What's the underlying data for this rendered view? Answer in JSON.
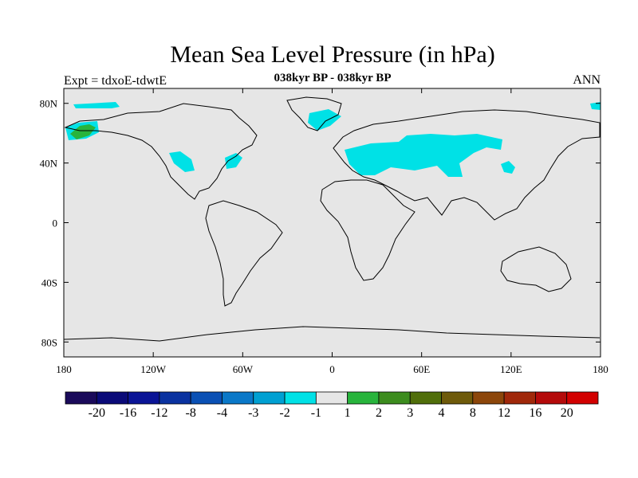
{
  "title": "Mean Sea Level Pressure (in hPa)",
  "subtitle": "038kyr BP - 038kyr BP",
  "left_label": "Expt = tdxoE-tdwtE",
  "right_label": "ANN",
  "colors": {
    "background_field": "#e6e6e6",
    "coastline": "#000000",
    "anomaly_neg": "#00e1e6",
    "anomaly_pos": "#28b43c"
  },
  "map": {
    "x_ticks": [
      {
        "value": -180,
        "label": "180"
      },
      {
        "value": -120,
        "label": "120W"
      },
      {
        "value": -60,
        "label": "60W"
      },
      {
        "value": 0,
        "label": "0"
      },
      {
        "value": 60,
        "label": "60E"
      },
      {
        "value": 120,
        "label": "120E"
      },
      {
        "value": 180,
        "label": "180"
      }
    ],
    "y_ticks": [
      {
        "value": 80,
        "label": "80N"
      },
      {
        "value": 40,
        "label": "40N"
      },
      {
        "value": 0,
        "label": "0"
      },
      {
        "value": -40,
        "label": "40S"
      },
      {
        "value": -80,
        "label": "80S"
      }
    ],
    "lon_range": [
      -180,
      180
    ],
    "lat_range": [
      -90,
      90
    ]
  },
  "colorbar": {
    "colors": [
      "#1a0a5a",
      "#0a0a78",
      "#0a1496",
      "#0a32a0",
      "#0a50b4",
      "#0a78c8",
      "#00a0d2",
      "#00e1e6",
      "#e6e6e6",
      "#28b43c",
      "#3c8c1e",
      "#506e0a",
      "#6e5a0a",
      "#8c460a",
      "#a0280a",
      "#b40a0a",
      "#d20000"
    ],
    "labels": [
      "-20",
      "-16",
      "-12",
      "-8",
      "-4",
      "-3",
      "-2",
      "-1",
      "1",
      "2",
      "3",
      "4",
      "8",
      "12",
      "16",
      "20"
    ]
  }
}
